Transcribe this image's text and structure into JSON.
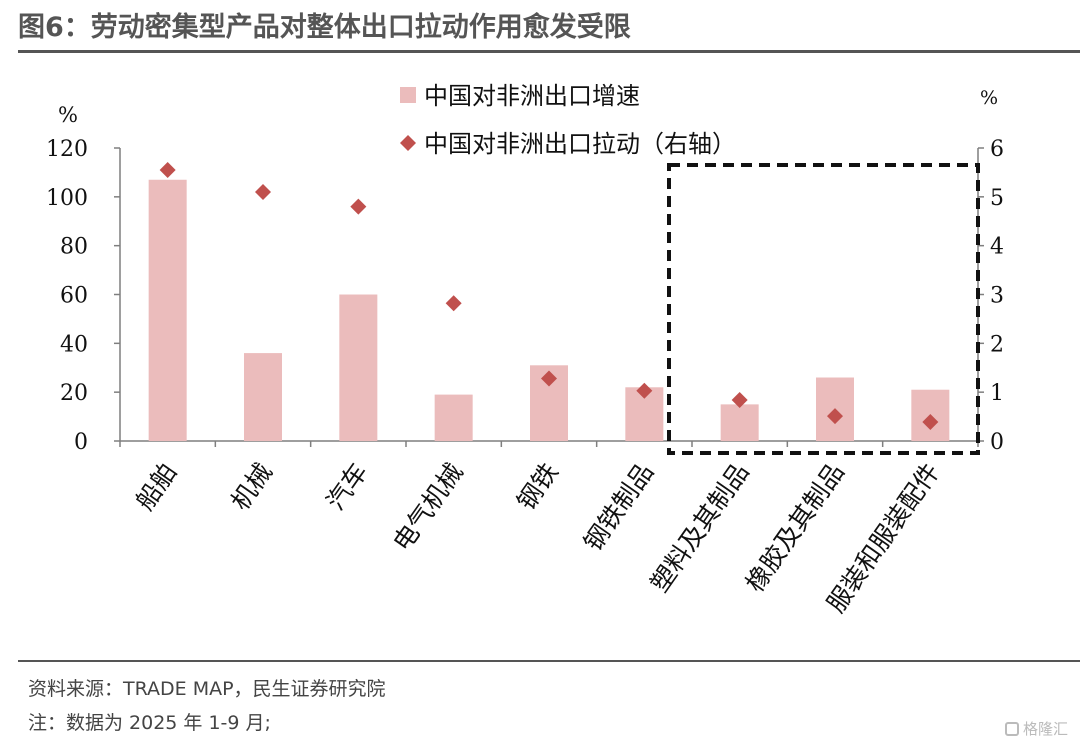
{
  "header": {
    "title": "图6：劳动密集型产品对整体出口拉动作用愈发受限"
  },
  "footer": {
    "source": "资料来源：TRADE MAP，民生证券研究院",
    "note": "注：数据为 2025 年 1-9 月;"
  },
  "watermark": {
    "text": "格隆汇"
  },
  "chart_data": {
    "type": "bar",
    "categories": [
      "船舶",
      "机械",
      "汽车",
      "电气机械",
      "钢铁",
      "钢铁制品",
      "塑料及其制品",
      "橡胶及其制品",
      "服装和服装配件"
    ],
    "series": [
      {
        "name": "中国对非洲出口增速",
        "type": "bar",
        "axis": "left",
        "color": "#ebbcbc",
        "values": [
          107,
          36,
          60,
          19,
          31,
          22,
          15,
          26,
          21
        ]
      },
      {
        "name": "中国对非洲出口拉动（右轴）",
        "type": "scatter",
        "axis": "right",
        "color": "#c0504d",
        "marker": "diamond",
        "values": [
          5.55,
          5.1,
          4.8,
          2.82,
          1.28,
          1.03,
          0.84,
          0.51,
          0.39
        ]
      }
    ],
    "left_axis": {
      "unit": "%",
      "ylim": [
        0,
        120
      ],
      "ticks": [
        "0",
        "20",
        "40",
        "60",
        "80",
        "100",
        "120"
      ]
    },
    "right_axis": {
      "unit": "%",
      "ylim": [
        0,
        6
      ],
      "ticks": [
        "0",
        "1",
        "2",
        "3",
        "4",
        "5",
        "6"
      ]
    },
    "grid": false,
    "legend": "top-center",
    "highlight_box": {
      "from_category": "塑料及其制品",
      "to_category": "服装和服装配件",
      "style": "dashed"
    }
  }
}
